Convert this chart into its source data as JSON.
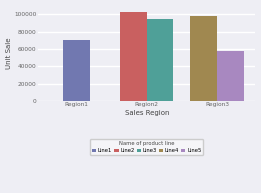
{
  "regions": [
    "Region1",
    "Region2",
    "Region3"
  ],
  "bars": [
    {
      "label": "Line1",
      "region": "Region1",
      "value": 70000,
      "color": "#7178b0"
    },
    {
      "label": "Line2",
      "region": "Region2",
      "value": 103000,
      "color": "#c96060"
    },
    {
      "label": "Line3",
      "region": "Region2",
      "value": 95000,
      "color": "#4fa098"
    },
    {
      "label": "Line4",
      "region": "Region3",
      "value": 98000,
      "color": "#a08850"
    },
    {
      "label": "Line5",
      "region": "Region3",
      "value": 58000,
      "color": "#a888c0"
    }
  ],
  "ylabel": "Unit Sale",
  "xlabel": "Sales Region",
  "legend_title": "Name of product line",
  "ylim": [
    0,
    110000
  ],
  "yticks": [
    0,
    20000,
    40000,
    60000,
    80000,
    100000
  ],
  "ytick_labels": [
    "0",
    "20000",
    "40000",
    "60000",
    "80000",
    "100000"
  ],
  "background_color": "#eeeef4",
  "plot_bg_color": "#eeeef4",
  "grid_color": "#ffffff",
  "axis_fontsize": 5,
  "tick_fontsize": 4.2,
  "legend_fontsize": 3.8,
  "bar_width": 0.38
}
